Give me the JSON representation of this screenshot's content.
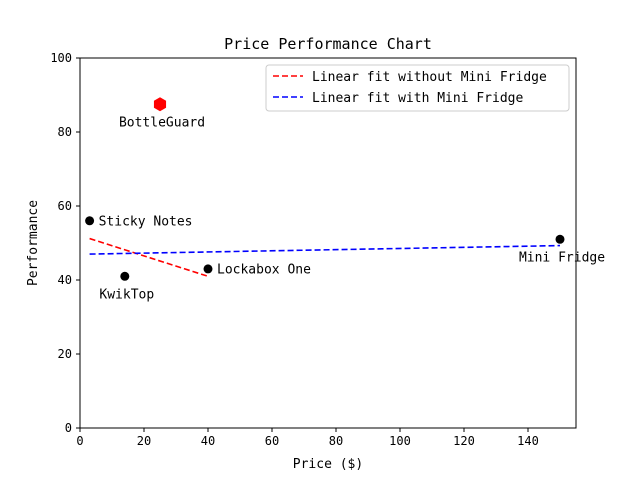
{
  "chart_data": {
    "type": "scatter",
    "title": "Price Performance Chart",
    "xlabel": "Price ($)",
    "ylabel": "Performance",
    "xlim": [
      0,
      155
    ],
    "ylim": [
      0,
      100
    ],
    "x_ticks": [
      0,
      20,
      40,
      60,
      80,
      100,
      120,
      140
    ],
    "y_ticks": [
      0,
      20,
      40,
      60,
      80,
      100
    ],
    "grid": false,
    "legend_position": "top-right",
    "points": [
      {
        "label": "Sticky Notes",
        "x": 3,
        "y": 56,
        "marker": "circle",
        "color": "#000000",
        "label_side": "right"
      },
      {
        "label": "KwikTop",
        "x": 14,
        "y": 41,
        "marker": "circle",
        "color": "#000000",
        "label_side": "below"
      },
      {
        "label": "Lockabox One",
        "x": 40,
        "y": 43,
        "marker": "circle",
        "color": "#000000",
        "label_side": "right"
      },
      {
        "label": "BottleGuard",
        "x": 25,
        "y": 87.5,
        "marker": "hexagon",
        "color": "#ff0000",
        "label_side": "below"
      },
      {
        "label": "Mini Fridge",
        "x": 150,
        "y": 51,
        "marker": "circle",
        "color": "#000000",
        "label_side": "below"
      }
    ],
    "series": [
      {
        "name": "Linear fit without Mini Fridge",
        "color": "#ff0000",
        "style": "dashed",
        "x": [
          3,
          40
        ],
        "y": [
          51.2,
          41
        ]
      },
      {
        "name": "Linear fit with Mini Fridge",
        "color": "#0000ff",
        "style": "dashed",
        "x": [
          3,
          150
        ],
        "y": [
          47,
          49.3
        ]
      }
    ]
  }
}
